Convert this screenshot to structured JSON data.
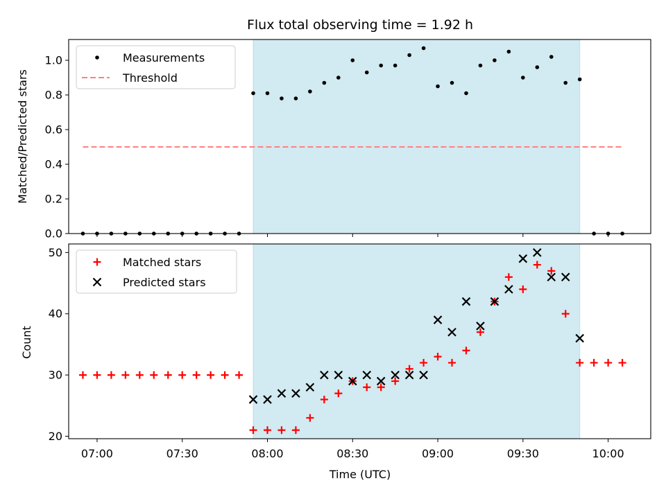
{
  "chart_data": [
    {
      "type": "scatter",
      "title": "Flux total observing time = 1.92 h",
      "xlabel": "",
      "ylabel": "Matched/Predicted stars",
      "ylim": [
        0,
        1.12
      ],
      "yticks": [
        "0.0",
        "0.2",
        "0.4",
        "0.6",
        "0.8",
        "1.0"
      ],
      "ytick_values": [
        0,
        0.2,
        0.4,
        0.6,
        0.8,
        1.0
      ],
      "xlim": [
        "06:50",
        "10:15"
      ],
      "shaded_interval": [
        "07:55",
        "09:50"
      ],
      "shade_color": "#add8e6",
      "legend_position": "upper-left",
      "series": [
        {
          "name": "Measurements",
          "marker": "dot",
          "color": "#000000",
          "x": [
            "06:55",
            "07:00",
            "07:05",
            "07:10",
            "07:15",
            "07:20",
            "07:25",
            "07:30",
            "07:35",
            "07:40",
            "07:45",
            "07:50",
            "07:55",
            "08:00",
            "08:05",
            "08:10",
            "08:15",
            "08:20",
            "08:25",
            "08:30",
            "08:35",
            "08:40",
            "08:45",
            "08:50",
            "08:55",
            "09:00",
            "09:05",
            "09:10",
            "09:15",
            "09:20",
            "09:25",
            "09:30",
            "09:35",
            "09:40",
            "09:45",
            "09:50",
            "09:55",
            "10:00",
            "10:05"
          ],
          "y": [
            0,
            0,
            0,
            0,
            0,
            0,
            0,
            0,
            0,
            0,
            0,
            0,
            0.81,
            0.81,
            0.78,
            0.78,
            0.82,
            0.87,
            0.9,
            1.0,
            0.93,
            0.97,
            0.97,
            1.03,
            1.07,
            0.85,
            0.87,
            0.81,
            0.97,
            1.0,
            1.05,
            0.9,
            0.96,
            1.02,
            0.87,
            0.89,
            0,
            0,
            0
          ]
        },
        {
          "name": "Threshold",
          "style": "dashed",
          "color": "#ff7f7f",
          "x": [
            "06:55",
            "10:05"
          ],
          "y": [
            0.5,
            0.5
          ]
        }
      ]
    },
    {
      "type": "scatter",
      "title": "",
      "xlabel": "Time (UTC)",
      "ylabel": "Count",
      "ylim": [
        19.6,
        51.4
      ],
      "yticks": [
        "20",
        "30",
        "40",
        "50"
      ],
      "ytick_values": [
        20,
        30,
        40,
        50
      ],
      "xlim": [
        "06:50",
        "10:15"
      ],
      "xticks": [
        "07:00",
        "07:30",
        "08:00",
        "08:30",
        "09:00",
        "09:30",
        "10:00"
      ],
      "shaded_interval": [
        "07:55",
        "09:50"
      ],
      "shade_color": "#add8e6",
      "legend_position": "upper-left",
      "series": [
        {
          "name": "Matched stars",
          "marker": "plus",
          "color": "#ff0000",
          "x": [
            "06:55",
            "07:00",
            "07:05",
            "07:10",
            "07:15",
            "07:20",
            "07:25",
            "07:30",
            "07:35",
            "07:40",
            "07:45",
            "07:50",
            "07:55",
            "08:00",
            "08:05",
            "08:10",
            "08:15",
            "08:20",
            "08:25",
            "08:30",
            "08:35",
            "08:40",
            "08:45",
            "08:50",
            "08:55",
            "09:00",
            "09:05",
            "09:10",
            "09:15",
            "09:20",
            "09:25",
            "09:30",
            "09:35",
            "09:40",
            "09:45",
            "09:50",
            "09:55",
            "10:00",
            "10:05"
          ],
          "y": [
            30,
            30,
            30,
            30,
            30,
            30,
            30,
            30,
            30,
            30,
            30,
            30,
            21,
            21,
            21,
            21,
            23,
            26,
            27,
            29,
            28,
            28,
            29,
            31,
            32,
            33,
            32,
            34,
            37,
            42,
            46,
            44,
            48,
            47,
            40,
            32,
            32,
            32,
            32
          ]
        },
        {
          "name": "Predicted stars",
          "marker": "x",
          "color": "#000000",
          "x": [
            "07:55",
            "08:00",
            "08:05",
            "08:10",
            "08:15",
            "08:20",
            "08:25",
            "08:30",
            "08:35",
            "08:40",
            "08:45",
            "08:50",
            "08:55",
            "09:00",
            "09:05",
            "09:10",
            "09:15",
            "09:20",
            "09:25",
            "09:30",
            "09:35",
            "09:40",
            "09:45",
            "09:50"
          ],
          "y": [
            26,
            26,
            27,
            27,
            28,
            30,
            30,
            29,
            30,
            29,
            30,
            30,
            30,
            39,
            37,
            42,
            38,
            42,
            44,
            49,
            50,
            46,
            46,
            36
          ]
        }
      ]
    }
  ]
}
